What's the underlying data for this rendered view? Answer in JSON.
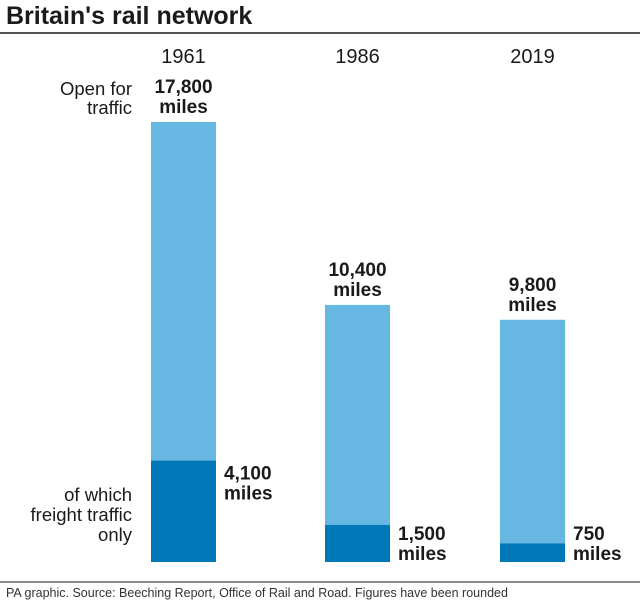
{
  "title": "Britain's rail network",
  "footer": "PA graphic. Source: Beeching Report, Office of Rail and Road. Figures have been rounded",
  "labels": {
    "total_lines": [
      "Open for",
      "traffic"
    ],
    "freight_lines": [
      "of which",
      "freight traffic",
      "only"
    ]
  },
  "colors": {
    "total": "#66b8e3",
    "freight": "#0077b6",
    "rule": "#1a1a1a"
  },
  "chart_data": {
    "type": "bar",
    "title": "Britain's rail network",
    "categories": [
      "1961",
      "1986",
      "2019"
    ],
    "series": [
      {
        "name": "Open for traffic",
        "values": [
          17800,
          10400,
          9800
        ],
        "unit": "miles",
        "labels": [
          [
            "17,800",
            "miles"
          ],
          [
            "10,400",
            "miles"
          ],
          [
            "9,800",
            "miles"
          ]
        ]
      },
      {
        "name": "of which freight traffic only",
        "values": [
          4100,
          1500,
          750
        ],
        "unit": "miles",
        "labels": [
          [
            "4,100",
            "miles"
          ],
          [
            "1,500",
            "miles"
          ],
          [
            "750",
            "miles"
          ]
        ]
      }
    ],
    "layout": "overlapping bars, freight portion at base of each total bar",
    "grid": false,
    "legend": "none (inline labels on left)"
  }
}
